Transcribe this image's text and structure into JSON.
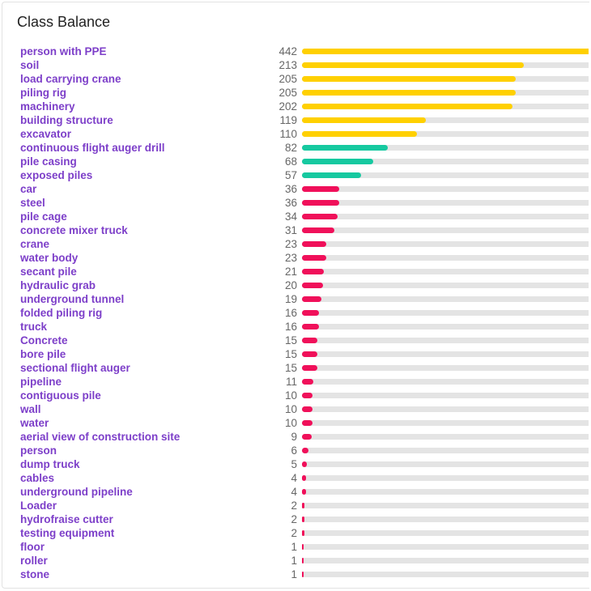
{
  "title": "Class Balance",
  "colors": {
    "high": "#ffd000",
    "mid": "#16c9a0",
    "low": "#f0105a",
    "track": "#e4e4e4",
    "label": "#7d3fc9"
  },
  "max_count": 442,
  "classes": [
    {
      "name": "person with PPE",
      "count": 442,
      "color": "#ffd000"
    },
    {
      "name": "soil",
      "count": 213,
      "color": "#ffd000"
    },
    {
      "name": "load carrying crane",
      "count": 205,
      "color": "#ffd000"
    },
    {
      "name": "piling rig",
      "count": 205,
      "color": "#ffd000"
    },
    {
      "name": "machinery",
      "count": 202,
      "color": "#ffd000"
    },
    {
      "name": "building structure",
      "count": 119,
      "color": "#ffd000"
    },
    {
      "name": "excavator",
      "count": 110,
      "color": "#ffd000"
    },
    {
      "name": "continuous flight auger drill",
      "count": 82,
      "color": "#16c9a0"
    },
    {
      "name": "pile casing",
      "count": 68,
      "color": "#16c9a0"
    },
    {
      "name": "exposed piles",
      "count": 57,
      "color": "#16c9a0"
    },
    {
      "name": "car",
      "count": 36,
      "color": "#f0105a"
    },
    {
      "name": "steel",
      "count": 36,
      "color": "#f0105a"
    },
    {
      "name": "pile cage",
      "count": 34,
      "color": "#f0105a"
    },
    {
      "name": "concrete mixer truck",
      "count": 31,
      "color": "#f0105a"
    },
    {
      "name": "crane",
      "count": 23,
      "color": "#f0105a"
    },
    {
      "name": "water body",
      "count": 23,
      "color": "#f0105a"
    },
    {
      "name": "secant pile",
      "count": 21,
      "color": "#f0105a"
    },
    {
      "name": "hydraulic grab",
      "count": 20,
      "color": "#f0105a"
    },
    {
      "name": "underground tunnel",
      "count": 19,
      "color": "#f0105a"
    },
    {
      "name": "folded piling rig",
      "count": 16,
      "color": "#f0105a"
    },
    {
      "name": "truck",
      "count": 16,
      "color": "#f0105a"
    },
    {
      "name": "Concrete",
      "count": 15,
      "color": "#f0105a"
    },
    {
      "name": "bore pile",
      "count": 15,
      "color": "#f0105a"
    },
    {
      "name": "sectional flight auger",
      "count": 15,
      "color": "#f0105a"
    },
    {
      "name": "pipeline",
      "count": 11,
      "color": "#f0105a"
    },
    {
      "name": "contiguous pile",
      "count": 10,
      "color": "#f0105a"
    },
    {
      "name": "wall",
      "count": 10,
      "color": "#f0105a"
    },
    {
      "name": "water",
      "count": 10,
      "color": "#f0105a"
    },
    {
      "name": "aerial view of construction site",
      "count": 9,
      "color": "#f0105a"
    },
    {
      "name": "person",
      "count": 6,
      "color": "#f0105a"
    },
    {
      "name": "dump truck",
      "count": 5,
      "color": "#f0105a"
    },
    {
      "name": "cables",
      "count": 4,
      "color": "#f0105a"
    },
    {
      "name": "underground pipeline",
      "count": 4,
      "color": "#f0105a"
    },
    {
      "name": "Loader",
      "count": 2,
      "color": "#f0105a"
    },
    {
      "name": "hydrofraise cutter",
      "count": 2,
      "color": "#f0105a"
    },
    {
      "name": "testing equipment",
      "count": 2,
      "color": "#f0105a"
    },
    {
      "name": "floor",
      "count": 1,
      "color": "#f0105a"
    },
    {
      "name": "roller",
      "count": 1,
      "color": "#f0105a"
    },
    {
      "name": "stone",
      "count": 1,
      "color": "#f0105a"
    }
  ]
}
